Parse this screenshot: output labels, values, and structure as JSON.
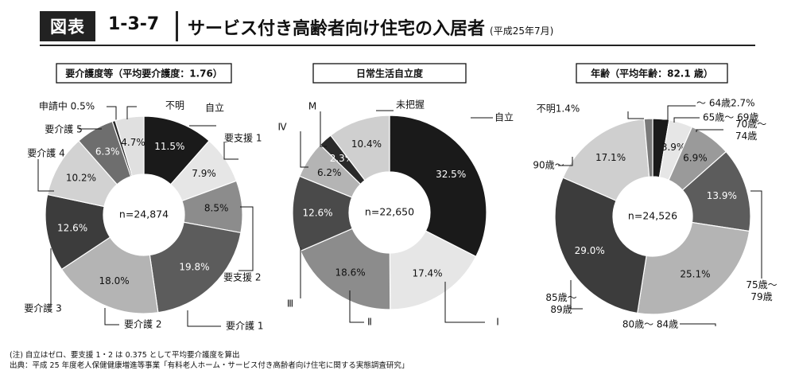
{
  "header": {
    "tag": "図表",
    "number": "1-3-7",
    "title": "サービス付き高齢者向け住宅の入居者",
    "subtitle": "(平成25年7月)"
  },
  "notes": {
    "note": "(注) 自立はゼロ、要支援 1・2 は 0.375 として平均要介護度を算出",
    "source": "出典：平成 25 年度老人保健健康増進等事業「有料老人ホーム・サービス付き高齢者向け住宅に関する実態調査研究」"
  },
  "chart_data": [
    {
      "type": "pie",
      "title": "要介護度等（平均要介護度：1.76）",
      "center_label": "n=24,874",
      "slices": [
        {
          "label": "自立",
          "value": 11.5,
          "value_label": "11.5%",
          "color": "#1a1a1a"
        },
        {
          "label": "要支援 1",
          "value": 7.9,
          "value_label": "7.9%",
          "color": "#e6e6e6"
        },
        {
          "label": "要支援 2",
          "value": 8.5,
          "value_label": "8.5%",
          "color": "#8c8c8c"
        },
        {
          "label": "要介護 1",
          "value": 19.8,
          "value_label": "19.8%",
          "color": "#5c5c5c"
        },
        {
          "label": "要介護 2",
          "value": 18.0,
          "value_label": "18.0%",
          "color": "#b4b4b4"
        },
        {
          "label": "要介護 3",
          "value": 12.6,
          "value_label": "12.6%",
          "color": "#3c3c3c"
        },
        {
          "label": "要介護 4",
          "value": 10.2,
          "value_label": "10.2%",
          "color": "#d2d2d2"
        },
        {
          "label": "要介護 5",
          "value": 6.3,
          "value_label": "6.3%",
          "color": "#6e6e6e"
        },
        {
          "label": "申請中 0.5%",
          "value": 0.5,
          "value_label": "",
          "color": "#2a2a2a"
        },
        {
          "label": "不明",
          "value": 4.7,
          "value_label": "4.7%",
          "color": "#e0e0e0"
        }
      ]
    },
    {
      "type": "pie",
      "title": "日常生活自立度",
      "center_label": "n=22,650",
      "slices": [
        {
          "label": "自立",
          "value": 32.5,
          "value_label": "32.5%",
          "color": "#1a1a1a"
        },
        {
          "label": "Ⅰ",
          "value": 17.4,
          "value_label": "17.4%",
          "color": "#e6e6e6"
        },
        {
          "label": "Ⅱ",
          "value": 18.6,
          "value_label": "18.6%",
          "color": "#8c8c8c"
        },
        {
          "label": "Ⅲ",
          "value": 12.6,
          "value_label": "12.6%",
          "color": "#4a4a4a"
        },
        {
          "label": "Ⅳ",
          "value": 6.2,
          "value_label": "6.2%",
          "color": "#b4b4b4"
        },
        {
          "label": "M",
          "value": 2.3,
          "value_label": "2.3%",
          "color": "#2a2a2a"
        },
        {
          "label": "未把握",
          "value": 10.4,
          "value_label": "10.4%",
          "color": "#cfcfcf"
        }
      ]
    },
    {
      "type": "pie",
      "title": "年齢（平均年齢：82.1 歳）",
      "center_label": "n=24,526",
      "slices": [
        {
          "label": "～ 64歳2.7%",
          "value": 2.7,
          "value_label": "",
          "color": "#1a1a1a"
        },
        {
          "label": "65歳～ 69歳",
          "value": 3.9,
          "value_label": "3.9%",
          "color": "#e6e6e6"
        },
        {
          "label": "70歳～ 74歳",
          "value": 6.9,
          "value_label": "6.9%",
          "color": "#9a9a9a"
        },
        {
          "label": "75歳～ 79歳",
          "value": 13.9,
          "value_label": "13.9%",
          "color": "#5c5c5c"
        },
        {
          "label": "80歳～ 84歳",
          "value": 25.1,
          "value_label": "25.1%",
          "color": "#b4b4b4"
        },
        {
          "label": "85歳～ 89歳",
          "value": 29.0,
          "value_label": "29.0%",
          "color": "#3c3c3c"
        },
        {
          "label": "90歳～",
          "value": 17.1,
          "value_label": "17.1%",
          "color": "#cfcfcf"
        },
        {
          "label": "不明1.4%",
          "value": 1.4,
          "value_label": "",
          "color": "#7a7a7a"
        }
      ]
    }
  ]
}
